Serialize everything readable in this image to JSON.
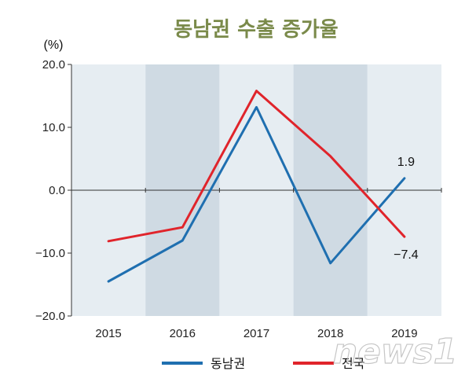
{
  "chart_data": {
    "type": "line",
    "title": "동남권 수출 증가율",
    "ylabel": "(%)",
    "categories": [
      "2015",
      "2016",
      "2017",
      "2018",
      "2019"
    ],
    "ylim": [
      -20,
      20
    ],
    "yticks": [
      "20.0",
      "10.0",
      "0.0",
      "−10.0",
      "−20.0"
    ],
    "series": [
      {
        "name": "동남권",
        "color": "#1f6fb0",
        "values": [
          -14.5,
          -8.0,
          13.2,
          -11.6,
          1.9
        ]
      },
      {
        "name": "전국",
        "color": "#e0242b",
        "values": [
          -8.1,
          -5.9,
          15.8,
          5.4,
          -7.4
        ]
      }
    ],
    "annotations": [
      {
        "series": 0,
        "index": 4,
        "text": "1.9"
      },
      {
        "series": 1,
        "index": 4,
        "text": "−7.4"
      }
    ],
    "colors": {
      "band_light": "#e6edf2",
      "band_dark": "#cfdae3",
      "title": "#7a8a4a"
    }
  },
  "watermark": "news1"
}
